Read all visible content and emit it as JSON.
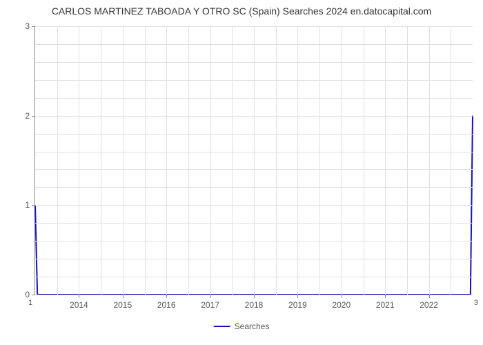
{
  "chart": {
    "type": "line",
    "title": "CARLOS MARTINEZ TABOADA Y OTRO SC (Spain) Searches 2024 en.datocapital.com",
    "title_fontsize": 14,
    "title_color": "#333333",
    "background_color": "#ffffff",
    "grid_color": "#e0e0e0",
    "axis_color": "#888888",
    "tick_label_color": "#555555",
    "tick_label_fontsize": 12,
    "x": {
      "ticks": [
        2014,
        2015,
        2016,
        2017,
        2018,
        2019,
        2020,
        2021,
        2022
      ],
      "min": 2013,
      "max": 2023
    },
    "y": {
      "ticks": [
        0,
        1,
        2,
        3
      ],
      "min": 0,
      "max": 3,
      "minor_count": 4
    },
    "corner_labels": {
      "bottom_left": "1",
      "bottom_right": "3"
    },
    "series": [
      {
        "name": "Searches",
        "color": "#1210c4",
        "line_width": 2,
        "points": [
          {
            "x": 2013.0,
            "y": 1.0
          },
          {
            "x": 2013.05,
            "y": 0.0
          },
          {
            "x": 2022.95,
            "y": 0.0
          },
          {
            "x": 2023.0,
            "y": 2.0
          }
        ]
      }
    ],
    "legend": {
      "label": "Searches",
      "position": "bottom-center"
    }
  }
}
